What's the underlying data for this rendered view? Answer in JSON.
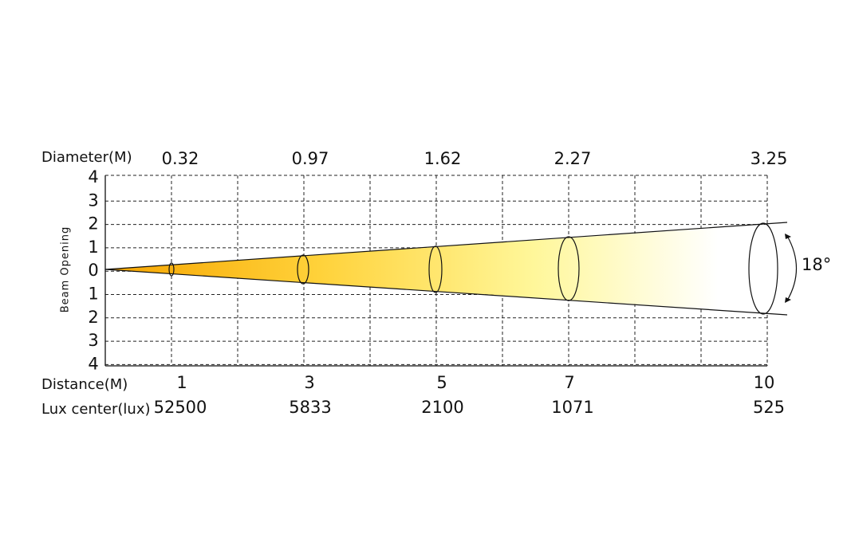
{
  "labels": {
    "diameter": "Diameter(M)",
    "beam_opening": "Beam Opening",
    "distance": "Distance(M)",
    "lux": "Lux center(lux)",
    "angle": "18°"
  },
  "y_ticks": [
    "4",
    "3",
    "2",
    "1",
    "0",
    "1",
    "2",
    "3",
    "4"
  ],
  "points": [
    {
      "diameter": "0.32",
      "distance": "1",
      "lux": "52500"
    },
    {
      "diameter": "0.97",
      "distance": "3",
      "lux": "5833"
    },
    {
      "diameter": "1.62",
      "distance": "5",
      "lux": "2100"
    },
    {
      "diameter": "2.27",
      "distance": "7",
      "lux": "1071"
    },
    {
      "diameter": "3.25",
      "distance": "10",
      "lux": "525"
    }
  ]
}
